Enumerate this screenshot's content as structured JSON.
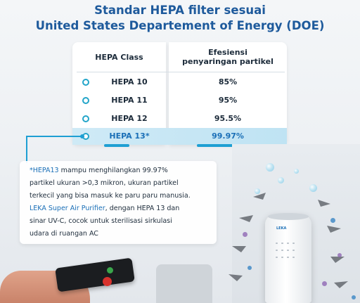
{
  "title": {
    "line1": "Standar HEPA filter sesuai",
    "line2": "United States Departement of Energy (DOE)"
  },
  "table": {
    "header_class": "HEPA Class",
    "header_eff_line1": "Efesiensi",
    "header_eff_line2": "penyaringan partikel",
    "rows": [
      {
        "class": "HEPA 10",
        "efficiency": "85%"
      },
      {
        "class": "HEPA 11",
        "efficiency": "95%"
      },
      {
        "class": "HEPA 12",
        "efficiency": "95.5%"
      },
      {
        "class": "HEPA 13*",
        "efficiency": "99.97%"
      }
    ]
  },
  "info": {
    "p1_highlight": "*HEPA13",
    "p1_rest_line1": " mampu menghilangkan 99.97%",
    "p1_line2": "partikel ukuran >0,3 mikron, ukuran partikel",
    "p1_line3": "terkecil yang bisa masuk ke paru paru manusia.",
    "p2_highlight": "LEKA Super Air Purifier",
    "p2_rest_line1": ", dengan HEPA 13 dan",
    "p2_line2": "sinar UV-C, cocok untuk sterilisasi sirkulasi",
    "p2_line3": "udara di ruangan AC"
  },
  "scene": {
    "purifier_logo": "LEKA"
  },
  "colors": {
    "title": "#1e5a9c",
    "accent": "#1e9fd3",
    "highlight_row": "#cfeaf6",
    "text": "#1c2b3a"
  }
}
